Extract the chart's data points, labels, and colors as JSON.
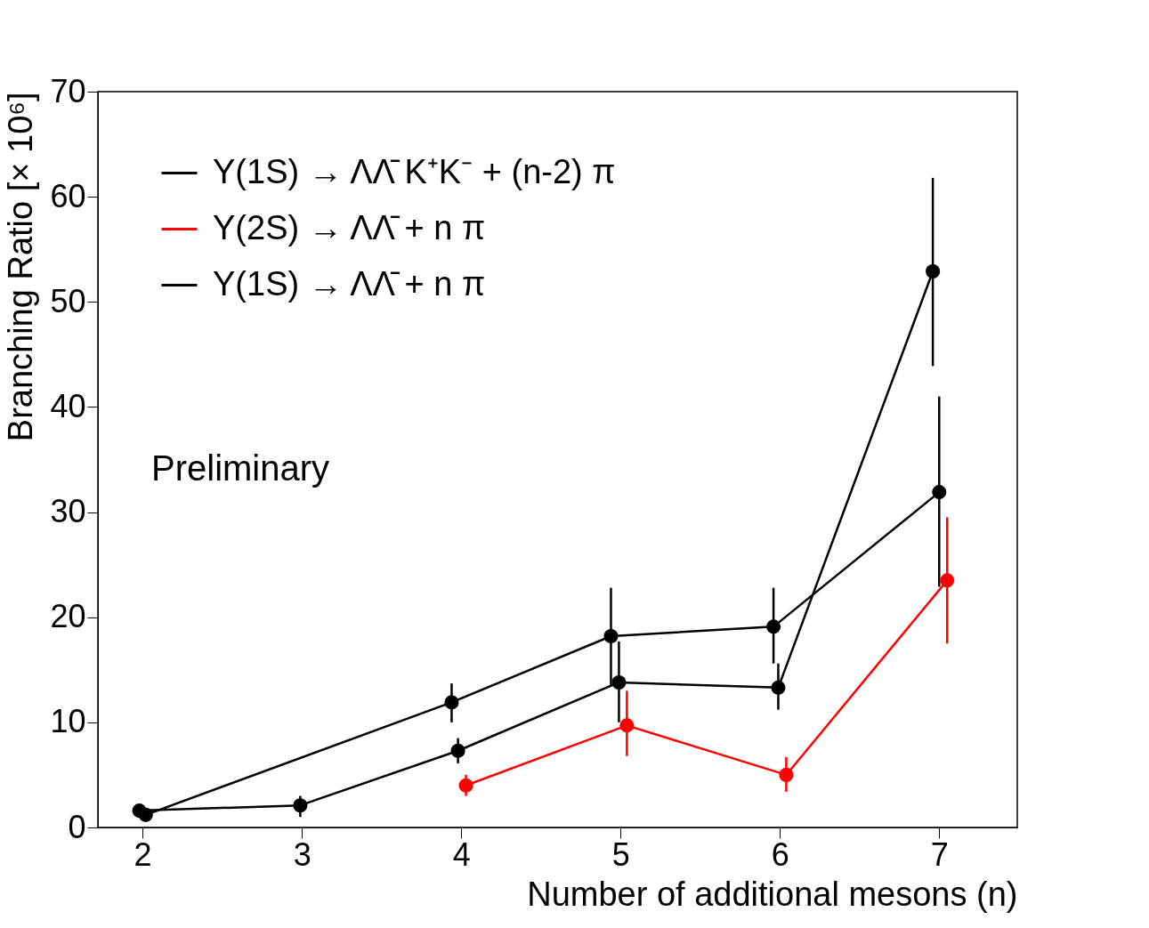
{
  "chart_data": {
    "type": "line",
    "xlabel": "Number of additional mesons (n)",
    "ylabel": "Branching Ratio [× 10⁶]",
    "xlim": [
      1.72,
      7.49
    ],
    "xticks": [
      2,
      3,
      4,
      5,
      6,
      7
    ],
    "ylim": [
      0,
      70
    ],
    "yticks": [
      0,
      10,
      20,
      30,
      40,
      50,
      60,
      70
    ],
    "grid": false,
    "legend": "top left",
    "marker": "circle",
    "line_style": "solid",
    "annotations": [
      "Preliminary"
    ],
    "series": [
      {
        "name": "Υ(1S) → ΛΛ̄ K⁺K⁻ + (n-2) π",
        "color": "#000000",
        "x": [
          1.98,
          2.99,
          3.98,
          4.99,
          5.99,
          6.96
        ],
        "values": [
          1.6,
          2.1,
          7.3,
          13.8,
          13.3,
          52.9
        ],
        "errors": [
          null,
          [
            1.0,
            3.0
          ],
          [
            6.1,
            8.5
          ],
          [
            10.0,
            17.7
          ],
          [
            11.2,
            15.6
          ],
          [
            43.9,
            61.8
          ]
        ]
      },
      {
        "name": "Υ(2S) → ΛΛ̄ + n π",
        "color": "#ff0000",
        "x": [
          4.03,
          5.04,
          6.04,
          7.05
        ],
        "values": [
          4.0,
          9.7,
          5.0,
          23.5
        ],
        "errors": [
          [
            3.0,
            5.0
          ],
          [
            6.8,
            13.0
          ],
          [
            3.4,
            6.7
          ],
          [
            17.5,
            29.5
          ]
        ]
      },
      {
        "name": "Υ(1S) → ΛΛ̄ + n π",
        "color": "#000000",
        "x": [
          2.02,
          3.94,
          4.94,
          5.96,
          7.0
        ],
        "values": [
          1.2,
          11.9,
          18.2,
          19.1,
          31.9
        ],
        "errors": [
          null,
          [
            10.0,
            13.7
          ],
          [
            13.5,
            22.8
          ],
          [
            15.6,
            22.8
          ],
          [
            22.9,
            41.0
          ]
        ]
      }
    ]
  }
}
